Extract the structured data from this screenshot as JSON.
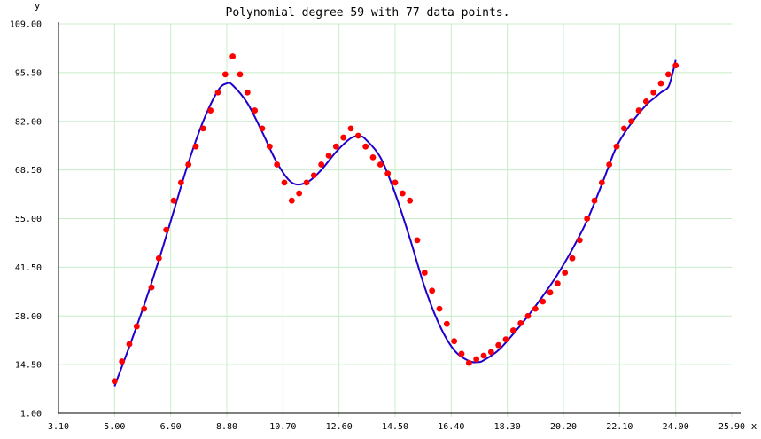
{
  "chart_data": {
    "type": "scatter",
    "title": "Polynomial degree 59 with 77 data points.",
    "xlabel": "x",
    "ylabel": "y",
    "xlim": [
      3.1,
      25.9
    ],
    "ylim": [
      1.0,
      109.0
    ],
    "xticks": [
      "3.10",
      "5.00",
      "6.90",
      "8.80",
      "10.70",
      "12.60",
      "14.50",
      "16.40",
      "18.30",
      "20.20",
      "22.10",
      "24.00",
      "25.90"
    ],
    "yticks": [
      "1.00",
      "14.50",
      "28.00",
      "41.50",
      "55.00",
      "68.50",
      "82.00",
      "95.50",
      "109.00"
    ],
    "grid": true,
    "colors": {
      "points": "#ff0000",
      "curve": "#2200cc",
      "grid": "#c8ecc8",
      "axis": "#000000"
    },
    "series": [
      {
        "kind": "points",
        "x": [
          5.0,
          5.25,
          5.5,
          5.75,
          6.0,
          6.25,
          6.5,
          6.75,
          7.0,
          7.25,
          7.5,
          7.75,
          8.0,
          8.25,
          8.5,
          8.75,
          9.0,
          9.25,
          9.5,
          9.75,
          10.0,
          10.25,
          10.5,
          10.75,
          11.0,
          11.25,
          11.5,
          11.75,
          12.0,
          12.25,
          12.5,
          12.75,
          13.0,
          13.25,
          13.5,
          13.75,
          14.0,
          14.25,
          14.5,
          14.75,
          15.0,
          15.25,
          15.5,
          15.75,
          16.0,
          16.25,
          16.5,
          16.75,
          17.0,
          17.25,
          17.5,
          17.75,
          18.0,
          18.25,
          18.5,
          18.75,
          19.0,
          19.25,
          19.5,
          19.75,
          20.0,
          20.25,
          20.5,
          20.75,
          21.0,
          21.25,
          21.5,
          21.75,
          22.0,
          22.25,
          22.5,
          22.75,
          23.0,
          23.25,
          23.5,
          23.75,
          24.0
        ],
        "y": [
          9.9,
          15.4,
          20.2,
          25.1,
          30.0,
          35.9,
          44.0,
          51.9,
          60.0,
          65.0,
          70.0,
          75.0,
          80.0,
          85.0,
          90.0,
          95.0,
          100.0,
          95.0,
          90.0,
          85.0,
          80.0,
          75.0,
          70.0,
          65.0,
          60.0,
          62.0,
          65.0,
          67.0,
          70.0,
          72.5,
          75.0,
          77.5,
          80.0,
          78.0,
          75.0,
          72.0,
          70.0,
          67.5,
          65.0,
          62.0,
          60.0,
          49.0,
          40.0,
          35.0,
          30.0,
          25.8,
          21.0,
          17.5,
          15.0,
          16.0,
          17.0,
          18.0,
          19.9,
          21.5,
          24.0,
          26.0,
          28.0,
          30.0,
          32.0,
          34.5,
          37.0,
          40.0,
          44.0,
          49.0,
          55.0,
          60.0,
          65.0,
          70.0,
          75.0,
          80.0,
          82.0,
          85.0,
          87.5,
          90.0,
          92.5,
          95.0,
          97.5
        ]
      },
      {
        "kind": "curve",
        "x": [
          5.0,
          5.5,
          6.0,
          6.5,
          7.0,
          7.5,
          8.0,
          8.5,
          8.8,
          9.0,
          9.5,
          10.0,
          10.5,
          11.0,
          11.5,
          12.0,
          12.5,
          13.0,
          13.3,
          13.5,
          14.0,
          14.5,
          15.0,
          15.5,
          16.0,
          16.5,
          17.0,
          17.3,
          17.5,
          18.0,
          18.5,
          19.0,
          19.5,
          20.0,
          20.5,
          21.0,
          21.5,
          22.0,
          22.5,
          23.0,
          23.3,
          23.5,
          23.75,
          23.9,
          24.0
        ],
        "y": [
          8.5,
          19.5,
          31.0,
          43.5,
          57.0,
          70.5,
          82.0,
          90.5,
          92.5,
          92.0,
          87.0,
          79.0,
          70.5,
          65.0,
          65.0,
          68.5,
          73.5,
          77.3,
          77.8,
          77.0,
          72.0,
          62.0,
          49.5,
          36.0,
          25.5,
          18.5,
          15.5,
          15.2,
          15.7,
          18.5,
          23.0,
          28.0,
          33.5,
          39.5,
          46.5,
          54.5,
          64.5,
          75.0,
          81.5,
          86.5,
          88.6,
          90.0,
          91.5,
          95.5,
          99.0
        ]
      }
    ]
  }
}
